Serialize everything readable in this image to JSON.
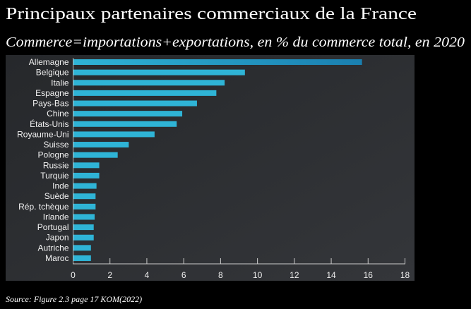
{
  "header": {
    "title": "Principaux partenaires commerciaux de la France",
    "subtitle": "Commerce=importations+exportations, en % du commerce total, en 2020"
  },
  "source": "Source: Figure 2.3 page 17 KOM(2022)",
  "colors": {
    "bar": "#2fb4d6",
    "bar_top": "#1a7fb0",
    "panel": "#2b2d30",
    "background": "#000000"
  },
  "chart_data": {
    "type": "bar",
    "orientation": "horizontal",
    "title": "Principaux partenaires commerciaux de la France",
    "subtitle": "Commerce=importations+exportations, en % du commerce total, en 2020",
    "xlabel": "",
    "ylabel": "",
    "categories": [
      "Allemagne",
      "Belgique",
      "Italie",
      "Espagne",
      "Pays-Bas",
      "Chine",
      "États-Unis",
      "Royaume-Uni",
      "Suisse",
      "Pologne",
      "Russie",
      "Turquie",
      "Inde",
      "Suède",
      "Rép. tchèque",
      "Irlande",
      "Portugal",
      "Japon",
      "Autriche",
      "Maroc"
    ],
    "values": [
      15.65,
      9.3,
      8.2,
      7.75,
      6.7,
      5.9,
      5.6,
      4.4,
      3.0,
      2.4,
      1.4,
      1.4,
      1.25,
      1.2,
      1.2,
      1.15,
      1.1,
      1.1,
      0.95,
      0.95
    ],
    "xlim": [
      0,
      18
    ],
    "xticks": [
      "0",
      "2",
      "4",
      "6",
      "8",
      "10",
      "12",
      "14",
      "16",
      "18"
    ],
    "grid": false,
    "legend": "none"
  }
}
